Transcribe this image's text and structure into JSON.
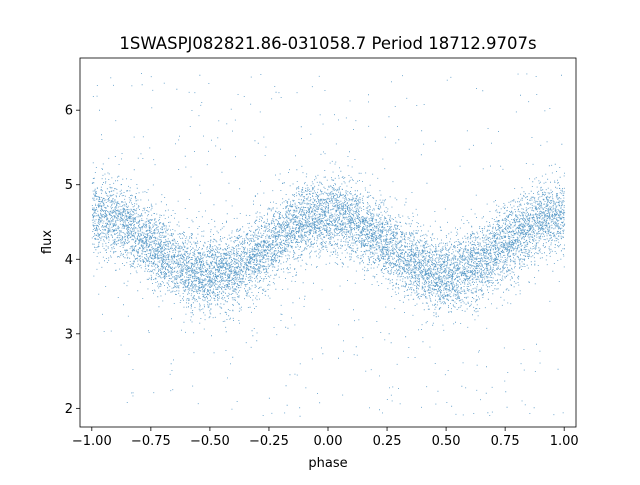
{
  "chart_data": {
    "type": "scatter",
    "title": "1SWASPJ082821.86-031058.7 Period 18712.9707s",
    "xlabel": "phase",
    "ylabel": "flux",
    "xlim": [
      -1.05,
      1.05
    ],
    "ylim": [
      1.75,
      6.7
    ],
    "xticks": [
      -1.0,
      -0.75,
      -0.5,
      -0.25,
      0.0,
      0.25,
      0.5,
      0.75,
      1.0
    ],
    "xtick_labels": [
      "−1.00",
      "−0.75",
      "−0.50",
      "−0.25",
      "0.00",
      "0.25",
      "0.50",
      "0.75",
      "1.00"
    ],
    "yticks": [
      2,
      3,
      4,
      5,
      6
    ],
    "ytick_labels": [
      "2",
      "3",
      "4",
      "5",
      "6"
    ],
    "grid": false,
    "legend": "none",
    "marker_color": "#1f77b4",
    "x_range": [
      -1.0,
      1.0
    ],
    "model": {
      "description": "phase-folded light curve, two cycles across phase -1 to 1",
      "mean_flux": 4.2,
      "amplitude": 0.4,
      "maxima_phase": [
        -1.0,
        0.0,
        1.0
      ],
      "minima_phase": [
        -0.5,
        0.5
      ],
      "scatter_sigma": 0.25,
      "outlier_range": [
        1.9,
        6.5
      ]
    }
  }
}
